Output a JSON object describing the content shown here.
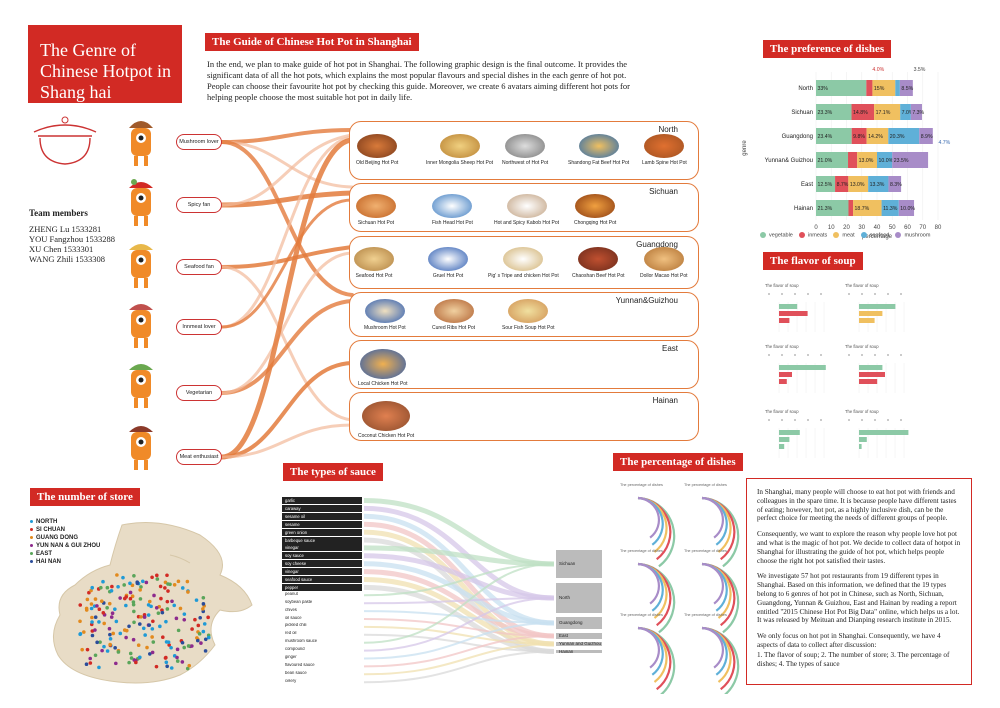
{
  "title": "The Genre of Chinese Hotpot in Shang hai",
  "guide": {
    "heading": "The Guide of Chinese Hot Pot in Shanghai",
    "intro": "In the end, we plan to make guide of hot pot in Shanghai. The following graphic design is the final outcome. It provides the significant data of all the hot pots, which explains the most popular flavours and special dishes in the each genre of hot pot. People can choose their favourite hot pot by checking this guide. Moreover, we create 6 avatars aiming different hot pots for helping people choose the most suitable hot pot in daily life."
  },
  "team": {
    "heading": "Team members",
    "members": [
      "ZHENG Lu 1533281",
      "YOU Fangzhou 1533288",
      "XU Chen 1533301",
      "WANG Zhili 1533308"
    ]
  },
  "lovers": [
    "Mushroom lover",
    "Spicy fan",
    "Seafood fan",
    "Innmeat lover",
    "Vegetarian",
    "Meat enthusiast"
  ],
  "regions": [
    {
      "name": "North",
      "pots": [
        "Old Beijing Hot Pot",
        "Inner Mongolia Sheep Hot Pot",
        "Northwest of Hot Pot",
        "Shandong Fat Beef Hot Pot",
        "Lamb Spine Hot Pot"
      ]
    },
    {
      "name": "Sichuan",
      "pots": [
        "Sichuan Hot Pot",
        "Fish Head Hot Pot",
        "Hot and Spicy Kabob Hot Pot",
        "Chongqing Hot Pot"
      ]
    },
    {
      "name": "Guangdong",
      "pots": [
        "Seafood Hot Pot",
        "Gruel Hot Pot",
        "Pig' s Tripe and chicken Hot Pot",
        "Chaoshan Beef Hot Pot",
        "Dollor Macao Hot Pot"
      ]
    },
    {
      "name": "Yunnan&Guizhou",
      "pots": [
        "Mushroom Hot Pot",
        "Cured Ribs Hot Pot",
        "Sour Fish Soup Hot Pot"
      ]
    },
    {
      "name": "East",
      "pots": [
        "Local Chicken Hot Pot"
      ]
    },
    {
      "name": "Hainan",
      "pots": [
        "Coconut Chicken Hot Pot"
      ]
    }
  ],
  "headings": {
    "preference": "The preference of dishes",
    "flavor": "The flavor of soup",
    "sauce": "The types of sauce",
    "percentage": "The percentage of dishes",
    "store": "The number of store"
  },
  "chart_data": [
    {
      "type": "bar",
      "stacked": true,
      "orientation": "horizontal",
      "categories": [
        "North",
        "Sichuan",
        "Guangdong",
        "Yunnan& Guizhou",
        "East",
        "Hainan"
      ],
      "xlabel": "percentage",
      "ylabel": "genre",
      "xlim": [
        0,
        80
      ],
      "xticks": [
        "0",
        "10",
        "20",
        "30",
        "40",
        "50",
        "60",
        "70",
        "80"
      ],
      "series": [
        {
          "name": "vegetable",
          "color": "#8cc9a6",
          "values": [
            33,
            23.3,
            23.4,
            21.0,
            12.5,
            21.3
          ]
        },
        {
          "name": "inmeats",
          "color": "#e0505a",
          "values": [
            4.0,
            14.8,
            9.8,
            6.0,
            8.7,
            3.0
          ]
        },
        {
          "name": "meat",
          "color": "#f0c060",
          "values": [
            15,
            17.1,
            14.2,
            13.0,
            13.0,
            18.7
          ]
        },
        {
          "name": "seafood",
          "color": "#5fb0d8",
          "values": [
            3.0,
            7.0,
            20.3,
            10.0,
            13.3,
            11.3
          ]
        },
        {
          "name": "mushroom",
          "color": "#a88cc8",
          "values": [
            8.5,
            7.3,
            8.9,
            23.5,
            8.3,
            10.0
          ]
        }
      ],
      "labels": [
        [
          "33%",
          "",
          "15%",
          "",
          "8.5%"
        ],
        [
          "23.3%",
          "14.8%",
          "17.1%",
          "7.0%",
          "7.3%"
        ],
        [
          "23.4%",
          "9.8%",
          "14.2%",
          "20.3%",
          "8.9%"
        ],
        [
          "21.0%",
          "",
          "13.0%",
          "10.0%",
          "23.5%"
        ],
        [
          "12.5%",
          "8.7%",
          "13.0%",
          "13.3%",
          "8.3%"
        ],
        [
          "21.3%",
          "",
          "18.7%",
          "11.3%",
          "10.0%"
        ]
      ],
      "annotations": [
        "4.0%",
        "3.5%",
        "4.7%"
      ],
      "legend": "bottom"
    },
    {
      "type": "bar",
      "note": "Sankey-style flow: sauce types to regions",
      "categories": [
        "garlic",
        "caraway",
        "sesame oil",
        "sesame",
        "green onion",
        "barbeque sauce",
        "vinegar",
        "soy sauce",
        "soy cheese",
        "vinegar",
        "seafood sauce",
        "pepper",
        "peanut",
        "soybean paste",
        "chives",
        "oil sauce",
        "pickled chili",
        "red oil",
        "mushroom sauce",
        "compound",
        "ginger",
        "flavoured sauce",
        "bean sauce",
        "celery"
      ],
      "targets": [
        "Sichuan",
        "North",
        "Guangdong",
        "East",
        "Yunnan and Guizhou",
        "Hainan"
      ]
    }
  ],
  "store": {
    "legend": [
      "NORTH",
      "SI CHUAN",
      "GUANG DONG",
      "YUN NAN & GUI ZHOU",
      "EAST",
      "HAI NAN"
    ],
    "legend_colors": [
      "#1f9ad6",
      "#d22a24",
      "#e28a1e",
      "#8d2a8d",
      "#5aa55a",
      "#2a4c9a"
    ]
  },
  "about": [
    "In Shanghai, many people will choose to eat hot pot with friends and colleagues in the spare time. It is because people have different tastes of eating; however, hot pot, as a highly inclusive dish, can be the perfect choice for meeting the needs of different groups of people.",
    "Consequently, we want to explore the reason why people love hot pot and what is the magic of hot pot. We decide to collect data of hotpot in Shanghai for illustrating the guide of hot pot, which helps people choose the right hot pot satisfied their tastes.",
    "We investigate 57 hot pot restaurants from 19 different types in Shanghai. Based on this information, we defined that the 19 types belong to 6 genres of hot pot in Chinese, such as North, Sichuan, Guangdong, Yunnan & Guizhou, East and Hainan by reading a report entitled \"2015 Chinese Hot Pot Big Data\" online, which helps us a lot. It was released by Meituan and Dianping research institute in 2015.",
    "We only focus on hot pot in Shanghai. Consequently, we have 4 aspects of data to collect after discussion:",
    "1. The flavor of soup;  2. The number of store;  3. The percentage of dishes;  4. The types of sauce"
  ]
}
